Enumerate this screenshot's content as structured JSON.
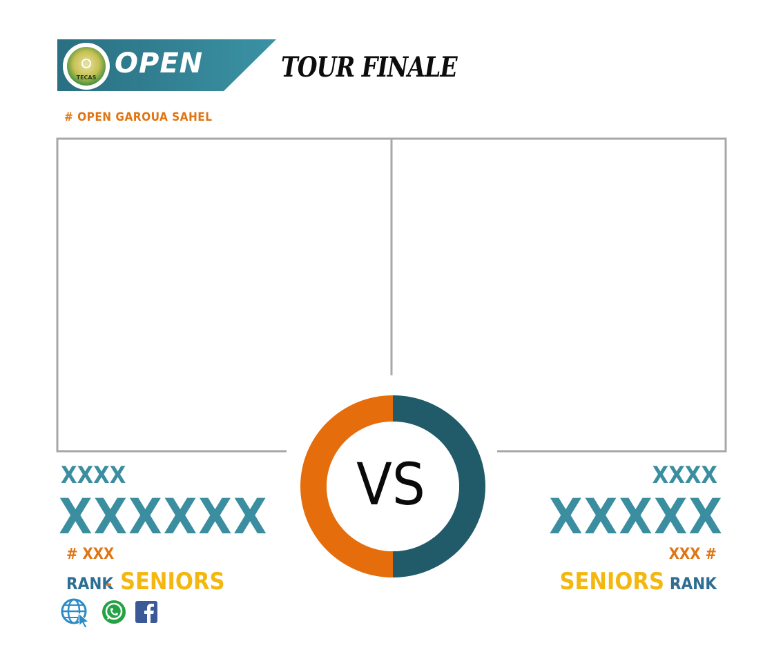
{
  "header": {
    "logo_text": "TECAS",
    "open_label": "OPEN",
    "title": "TOUR FINALE",
    "hashtag": "#  OPEN GAROUA SAHEL"
  },
  "versus": {
    "label": "VS"
  },
  "player_left": {
    "first_name": "XXXX",
    "last_name": "XXXXXX",
    "number": "# XXX",
    "rank_label": "RANK",
    "separator": "-",
    "category": "SENIORS"
  },
  "player_right": {
    "first_name": "XXXX",
    "last_name": "XXXXX",
    "number": "XXX #",
    "rank_label": "RANK",
    "separator": "-",
    "category": "SENIORS"
  },
  "social": {
    "icons": [
      "web-icon",
      "whatsapp-icon",
      "facebook-icon"
    ]
  },
  "colors": {
    "teal_dark": "#215b69",
    "teal": "#3a8ea0",
    "orange": "#e56d0c",
    "yellow": "#f3b70f",
    "frame_gray": "#a7a7a7"
  }
}
